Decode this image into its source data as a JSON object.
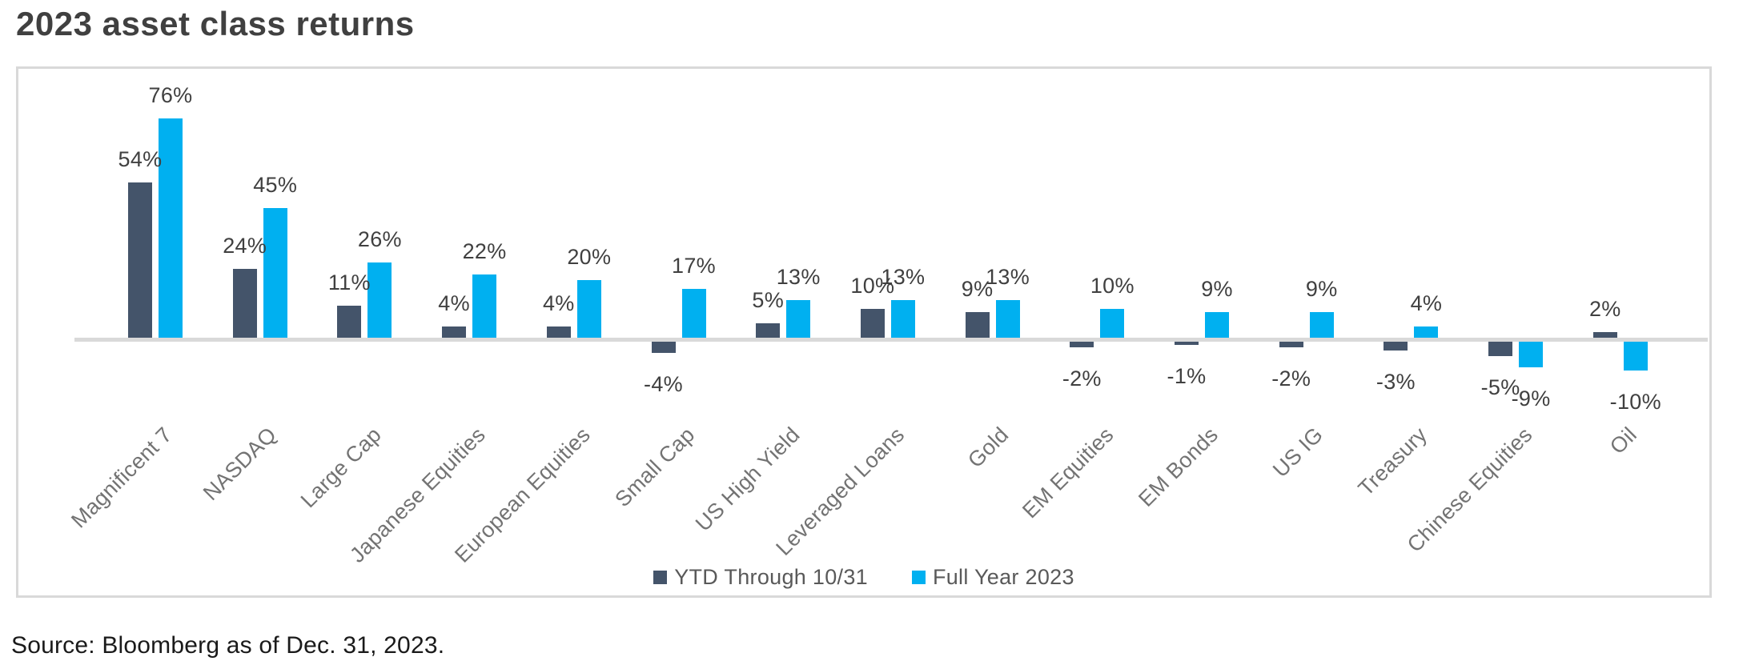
{
  "title": "2023 asset class returns",
  "source": "Source: Bloomberg as of Dec. 31, 2023.",
  "legend": [
    {
      "label": "YTD Through 10/31",
      "color": "#44546A"
    },
    {
      "label": "Full Year 2023",
      "color": "#00B0F0"
    }
  ],
  "colors": {
    "series_ytd": "#44546A",
    "series_full_year": "#00B0F0",
    "axis_line": "#D9D9D9",
    "plot_border": "#D9D9D9",
    "title_text": "#404040",
    "value_label_text": "#404040",
    "category_label_text": "#737373",
    "legend_text": "#595959"
  },
  "chart_data": {
    "type": "bar",
    "title": "2023 asset class returns",
    "categories": [
      "Magnificent 7",
      "NASDAQ",
      "Large Cap",
      "Japanese Equities",
      "European Equities",
      "Small Cap",
      "US High Yield",
      "Leveraged Loans",
      "Gold",
      "EM Equities",
      "EM Bonds",
      "US IG",
      "Treasury",
      "Chinese Equities",
      "Oil"
    ],
    "series": [
      {
        "name": "YTD Through 10/31",
        "color": "#44546A",
        "values": [
          54,
          24,
          11,
          4,
          4,
          -4,
          5,
          10,
          9,
          -2,
          -1,
          -2,
          -3,
          -5,
          2
        ],
        "labels": [
          "54%",
          "24%",
          "11%",
          "4%",
          "4%",
          "-4%",
          "5%",
          "10%",
          "9%",
          "-2%",
          "-1%",
          "-2%",
          "-3%",
          "-5%",
          "2%"
        ]
      },
      {
        "name": "Full Year 2023",
        "color": "#00B0F0",
        "values": [
          76,
          45,
          26,
          22,
          20,
          17,
          13,
          13,
          13,
          10,
          9,
          9,
          4,
          -9,
          -10
        ],
        "labels": [
          "76%",
          "45%",
          "26%",
          "22%",
          "20%",
          "17%",
          "13%",
          "13%",
          "13%",
          "10%",
          "9%",
          "9%",
          "4%",
          "-9%",
          "-10%"
        ]
      }
    ],
    "xlabel": "",
    "ylabel": "",
    "y_axis_visible": false,
    "gridlines": false,
    "baseline_value": 0,
    "value_labels_visible": true,
    "category_label_rotation_deg": -45,
    "legend_position": "bottom-center"
  }
}
